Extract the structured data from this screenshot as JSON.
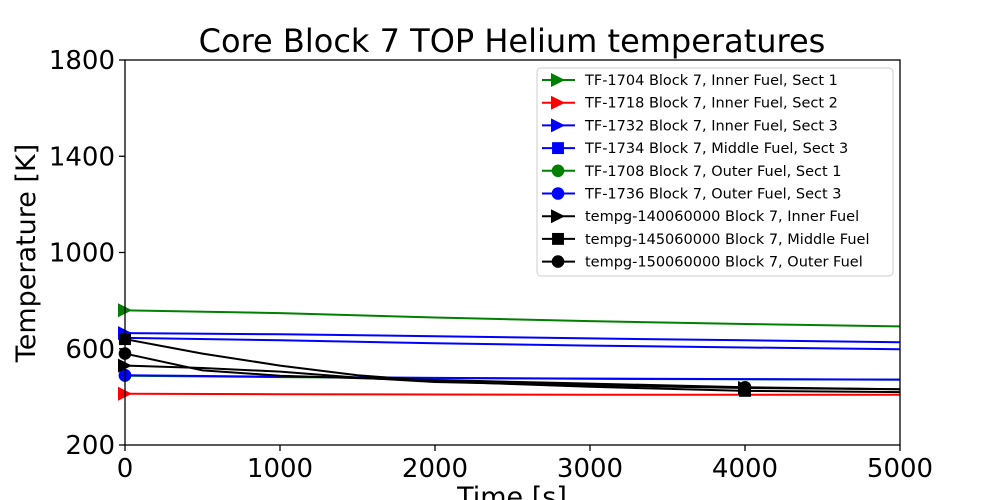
{
  "chart_data": {
    "type": "line",
    "title": "Core Block 7 TOP Helium temperatures",
    "xlabel": "Time [s]",
    "ylabel": "Temperature [K]",
    "xlim": [
      0,
      5000
    ],
    "ylim": [
      200,
      1800
    ],
    "xticks": [
      0,
      1000,
      2000,
      3000,
      4000,
      5000
    ],
    "yticks": [
      200,
      600,
      1000,
      1400,
      1800
    ],
    "grid": false,
    "legend_position": "top-right",
    "series": [
      {
        "name": "TF-1704 Block 7, Inner Fuel, Sect 1",
        "color": "#008000",
        "marker": "triangle-right",
        "x": [
          0,
          1000,
          2000,
          3000,
          4000,
          5000
        ],
        "y": [
          760,
          748,
          730,
          715,
          703,
          693
        ]
      },
      {
        "name": "TF-1718 Block 7, Inner Fuel, Sect 2",
        "color": "#ff0000",
        "marker": "triangle-right",
        "x": [
          0,
          1000,
          2000,
          3000,
          4000,
          5000
        ],
        "y": [
          413,
          411,
          410,
          409,
          409,
          409
        ]
      },
      {
        "name": "TF-1732 Block 7, Inner Fuel, Sect 3",
        "color": "#0000ff",
        "marker": "triangle-right",
        "x": [
          0,
          1000,
          2000,
          3000,
          4000,
          5000
        ],
        "y": [
          665,
          660,
          652,
          643,
          635,
          627
        ]
      },
      {
        "name": "TF-1734 Block 7, Middle Fuel, Sect 3",
        "color": "#0000ff",
        "marker": "square",
        "x": [
          0,
          1000,
          2000,
          3000,
          4000,
          5000
        ],
        "y": [
          645,
          635,
          623,
          613,
          605,
          598
        ]
      },
      {
        "name": "TF-1708 Block 7, Outer Fuel, Sect 1",
        "color": "#008000",
        "marker": "circle",
        "x": [
          0,
          1000,
          2000,
          3000,
          4000,
          5000
        ],
        "y": [
          488,
          482,
          478,
          475,
          473,
          472
        ]
      },
      {
        "name": "TF-1736 Block 7, Outer Fuel, Sect 3",
        "color": "#0000ff",
        "marker": "circle",
        "x": [
          0,
          1000,
          2000,
          3000,
          4000,
          5000
        ],
        "y": [
          490,
          484,
          479,
          476,
          474,
          472
        ]
      },
      {
        "name": "tempg-140060000 Block 7, Inner Fuel",
        "color": "#000000",
        "marker": "triangle-right",
        "x": [
          0,
          500,
          1000,
          1500,
          2000,
          3000,
          4000,
          5000
        ],
        "y": [
          530,
          520,
          505,
          480,
          462,
          448,
          437,
          432
        ]
      },
      {
        "name": "tempg-145060000 Block 7, Middle Fuel",
        "color": "#000000",
        "marker": "square",
        "x": [
          0,
          500,
          1000,
          1500,
          2000,
          3000,
          4000,
          5000
        ],
        "y": [
          640,
          580,
          530,
          490,
          465,
          442,
          425,
          420
        ]
      },
      {
        "name": "tempg-150060000 Block 7, Outer Fuel",
        "color": "#000000",
        "marker": "circle",
        "x": [
          0,
          500,
          1000,
          1500,
          2000,
          3000,
          4000,
          5000
        ],
        "y": [
          580,
          510,
          488,
          478,
          470,
          455,
          440,
          432
        ]
      }
    ]
  }
}
